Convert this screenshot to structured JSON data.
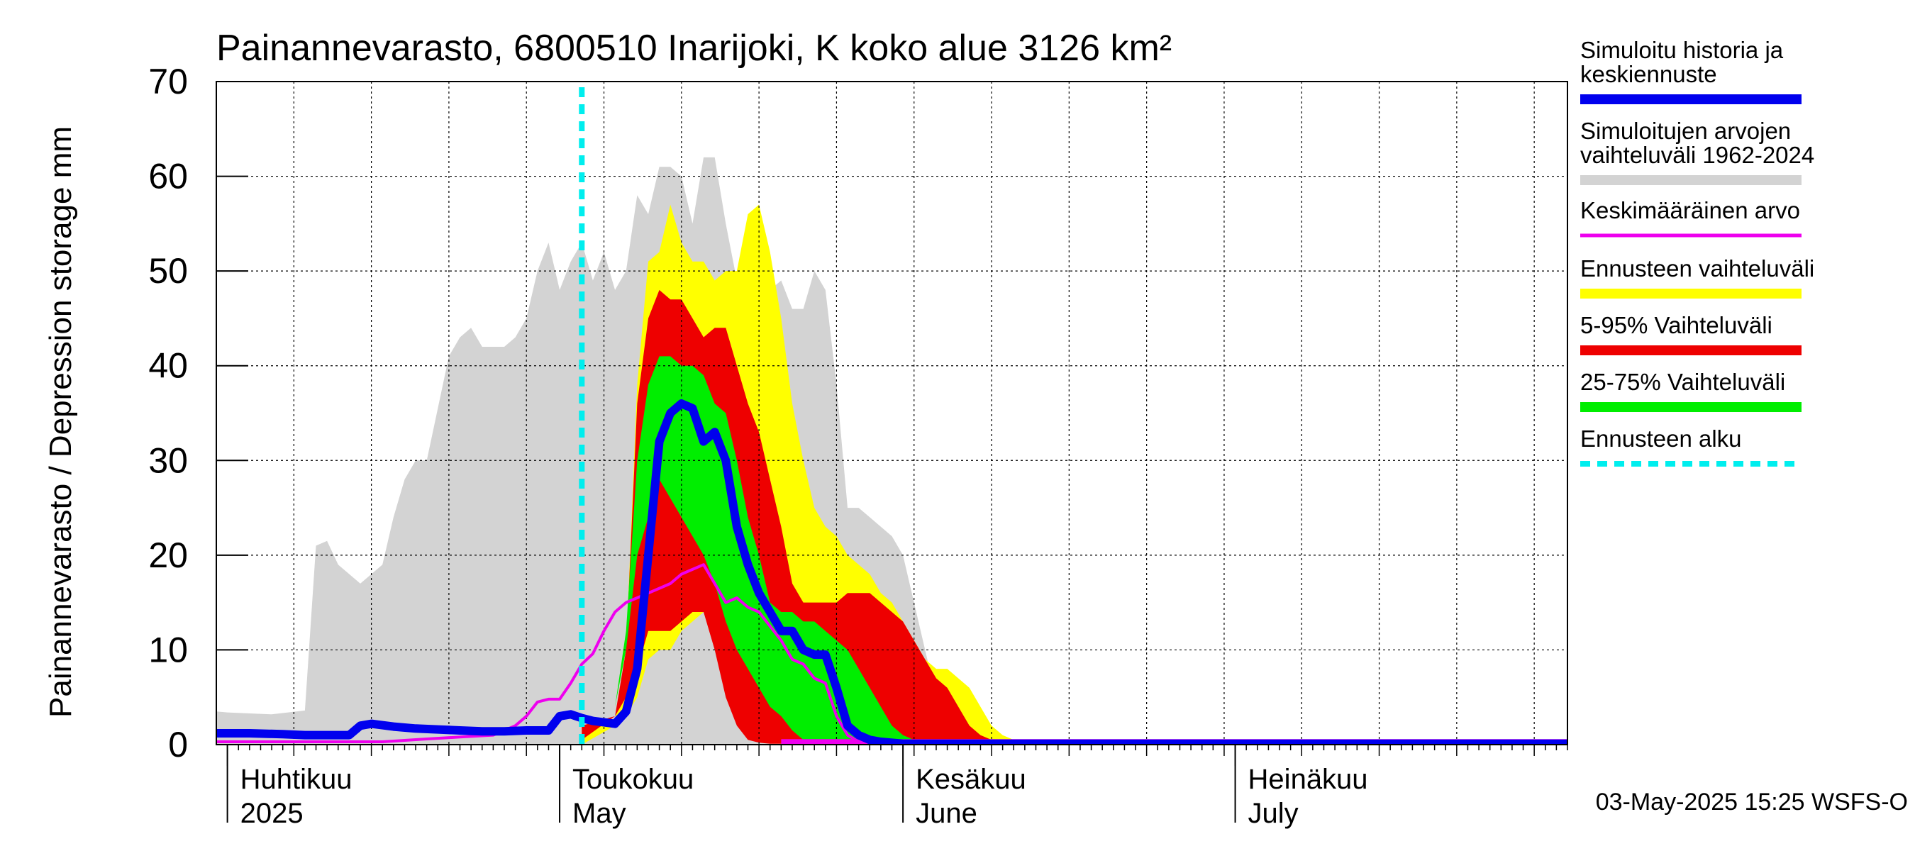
{
  "chart_data": {
    "type": "area",
    "title": "Painannevarasto, 6800510 Inarijoki, K koko alue 3126 km²",
    "ylabel": "Painannevarasto / Depression storage    mm",
    "ylim": [
      0,
      70
    ],
    "yticks": [
      0,
      10,
      20,
      30,
      40,
      50,
      60,
      70
    ],
    "xlim": [
      "2025-03-31",
      "2025-07-31"
    ],
    "grid": true,
    "legend_position": "right",
    "month_labels": [
      {
        "date": "2025-04-01",
        "fi": "Huhtikuu",
        "en": "2025"
      },
      {
        "date": "2025-05-01",
        "fi": "Toukokuu",
        "en": "May"
      },
      {
        "date": "2025-06-01",
        "fi": "Kesäkuu",
        "en": "June"
      },
      {
        "date": "2025-07-01",
        "fi": "Heinäkuu",
        "en": "July"
      }
    ],
    "forecast_start": "2025-05-03",
    "footer": "03-May-2025 15:25 WSFS-O",
    "legend": [
      {
        "key": "history",
        "label": "Simuloitu historia ja keskiennuste",
        "color": "#0000ee",
        "style": "solid"
      },
      {
        "key": "sim_range",
        "label": "Simuloitujen arvojen vaihteluväli 1962-2024",
        "color": "#d3d3d3",
        "style": "solid"
      },
      {
        "key": "mean",
        "label": "Keskimääräinen arvo",
        "color": "#ee00ee",
        "style": "solid"
      },
      {
        "key": "fc_range",
        "label": "Ennusteen vaihteluväli",
        "color": "#ffff00",
        "style": "solid"
      },
      {
        "key": "p5_95",
        "label": "5-95% Vaihteluväli",
        "color": "#ee0000",
        "style": "solid"
      },
      {
        "key": "p25_75",
        "label": "25-75% Vaihteluväli",
        "color": "#00ee00",
        "style": "solid"
      },
      {
        "key": "fc_start",
        "label": "Ennusteen alku",
        "color": "#00eeee",
        "style": "dashed"
      }
    ],
    "sim_range": {
      "x": [
        "2025-03-31",
        "2025-04-01",
        "2025-04-05",
        "2025-04-08",
        "2025-04-09",
        "2025-04-10",
        "2025-04-11",
        "2025-04-13",
        "2025-04-15",
        "2025-04-16",
        "2025-04-17",
        "2025-04-18",
        "2025-04-19",
        "2025-04-21",
        "2025-04-22",
        "2025-04-23",
        "2025-04-24",
        "2025-04-26",
        "2025-04-27",
        "2025-04-28",
        "2025-04-29",
        "2025-04-30",
        "2025-05-01",
        "2025-05-02",
        "2025-05-03",
        "2025-05-04",
        "2025-05-05",
        "2025-05-06",
        "2025-05-07",
        "2025-05-08",
        "2025-05-09",
        "2025-05-10",
        "2025-05-11",
        "2025-05-12",
        "2025-05-13",
        "2025-05-14",
        "2025-05-15",
        "2025-05-16",
        "2025-05-17",
        "2025-05-18",
        "2025-05-19",
        "2025-05-20",
        "2025-05-21",
        "2025-05-22",
        "2025-05-23",
        "2025-05-24",
        "2025-05-25",
        "2025-05-26",
        "2025-05-27",
        "2025-05-28",
        "2025-05-29",
        "2025-05-30",
        "2025-05-31",
        "2025-06-01",
        "2025-06-02",
        "2025-06-03",
        "2025-06-04",
        "2025-06-05",
        "2025-06-06",
        "2025-06-07",
        "2025-06-08",
        "2025-06-09",
        "2025-06-10",
        "2025-06-11",
        "2025-06-12",
        "2025-06-13",
        "2025-06-14",
        "2025-06-15",
        "2025-06-16",
        "2025-06-17",
        "2025-06-18",
        "2025-06-19",
        "2025-06-20",
        "2025-06-21",
        "2025-06-22",
        "2025-06-23",
        "2025-06-24",
        "2025-06-25",
        "2025-06-26",
        "2025-06-27",
        "2025-06-28",
        "2025-06-30",
        "2025-07-31"
      ],
      "low": [
        0,
        0,
        0,
        0,
        0,
        0,
        0,
        0,
        0,
        0,
        0,
        0,
        0,
        0,
        0,
        0,
        0,
        0,
        0,
        0,
        0,
        0,
        0,
        0,
        0,
        0,
        0,
        0,
        0,
        0,
        0,
        0,
        0,
        0,
        0,
        0,
        0,
        0,
        0,
        0,
        0,
        0,
        0,
        0,
        0,
        0,
        0,
        0,
        0,
        0,
        0,
        0,
        0,
        0,
        0,
        0,
        0,
        0,
        0,
        0,
        0,
        0,
        0,
        0,
        0,
        0,
        0,
        0,
        0,
        0,
        0,
        0,
        0,
        0,
        0,
        0,
        0,
        0,
        0,
        0,
        0,
        0,
        0
      ],
      "high": [
        3.5,
        3.4,
        3.2,
        3.6,
        21,
        21.5,
        19,
        17,
        19,
        24,
        28,
        30,
        30,
        41,
        43,
        44,
        42,
        42,
        43,
        45,
        50,
        53,
        48,
        51,
        53,
        49,
        52,
        48,
        50,
        58,
        56,
        61,
        61,
        60,
        55,
        62,
        62,
        55,
        49,
        49,
        48,
        48,
        49,
        46,
        46,
        50,
        48,
        38,
        25,
        25,
        24,
        23,
        22,
        20,
        15,
        10,
        5,
        2,
        1,
        0.5,
        0.3,
        0.2,
        0.1,
        0.1,
        0.1,
        0.1,
        0.1,
        0.1,
        0.1,
        0.1,
        0.1,
        0.1,
        0.1,
        0.1,
        0.1,
        0.1,
        0.1,
        0.1,
        0.1,
        0.1,
        0.1,
        0.1,
        0.1
      ]
    },
    "fc_range": {
      "x": [
        "2025-05-03",
        "2025-05-06",
        "2025-05-07",
        "2025-05-08",
        "2025-05-09",
        "2025-05-10",
        "2025-05-11",
        "2025-05-12",
        "2025-05-13",
        "2025-05-14",
        "2025-05-15",
        "2025-05-16",
        "2025-05-17",
        "2025-05-18",
        "2025-05-19",
        "2025-05-20",
        "2025-05-21",
        "2025-05-22",
        "2025-05-23",
        "2025-05-24",
        "2025-05-25",
        "2025-05-26",
        "2025-05-27",
        "2025-05-28",
        "2025-05-29",
        "2025-05-30",
        "2025-05-31",
        "2025-06-01",
        "2025-06-02",
        "2025-06-03",
        "2025-06-04",
        "2025-06-05",
        "2025-06-06",
        "2025-06-07",
        "2025-06-08",
        "2025-06-09",
        "2025-06-10",
        "2025-06-11",
        "2025-06-12",
        "2025-06-13",
        "2025-06-14",
        "2025-06-15",
        "2025-06-16",
        "2025-06-17",
        "2025-06-18",
        "2025-06-19",
        "2025-06-20",
        "2025-06-21",
        "2025-06-22",
        "2025-06-24",
        "2025-07-31"
      ],
      "low": [
        0,
        2,
        3,
        5,
        9,
        10,
        10,
        12,
        13,
        14,
        12,
        8,
        3,
        1,
        0.5,
        0.3,
        0.2,
        0.1,
        0.1,
        0.1,
        0.1,
        0.1,
        0.1,
        0.1,
        0.1,
        0.1,
        0.1,
        0.1,
        0.1,
        0.1,
        0.1,
        0.1,
        0.1,
        0.1,
        0.1,
        0.1,
        0.1,
        0.1,
        0.1,
        0.1,
        0.1,
        0.1,
        0.1,
        0.1,
        0.1,
        0.1,
        0.1,
        0.1,
        0.1,
        0.1,
        0.1
      ],
      "high": [
        2,
        2.5,
        10,
        38,
        51,
        52,
        57,
        53,
        51,
        51,
        49,
        50,
        50,
        56,
        57,
        52,
        45,
        36,
        30,
        25,
        23,
        22,
        20,
        19,
        18,
        16,
        15,
        13,
        11,
        9,
        8,
        8,
        7,
        6,
        4,
        2,
        1,
        0.5,
        0.3,
        0.2,
        0.1,
        0.1,
        0.1,
        0.1,
        0.1,
        0.1,
        0.1,
        0.1,
        0.1,
        0.1,
        0.1
      ]
    },
    "p5_95": {
      "x": [
        "2025-05-03",
        "2025-05-06",
        "2025-05-07",
        "2025-05-08",
        "2025-05-09",
        "2025-05-10",
        "2025-05-11",
        "2025-05-12",
        "2025-05-13",
        "2025-05-14",
        "2025-05-15",
        "2025-05-16",
        "2025-05-17",
        "2025-05-18",
        "2025-05-19",
        "2025-05-20",
        "2025-05-21",
        "2025-05-22",
        "2025-05-23",
        "2025-05-24",
        "2025-05-25",
        "2025-05-26",
        "2025-05-27",
        "2025-05-28",
        "2025-05-29",
        "2025-05-30",
        "2025-05-31",
        "2025-06-01",
        "2025-06-02",
        "2025-06-03",
        "2025-06-04",
        "2025-06-05",
        "2025-06-06",
        "2025-06-07",
        "2025-06-08",
        "2025-06-09",
        "2025-06-10",
        "2025-06-11",
        "2025-06-12",
        "2025-06-13",
        "2025-06-15",
        "2025-07-31"
      ],
      "low": [
        0.5,
        3,
        5,
        8,
        12,
        12,
        12,
        13,
        14,
        14,
        10,
        5,
        2,
        0.5,
        0.2,
        0.1,
        0.1,
        0.1,
        0.1,
        0.1,
        0.1,
        0.1,
        0.1,
        0.1,
        0.1,
        0.1,
        0.1,
        0.1,
        0.1,
        0.1,
        0.1,
        0.1,
        0.1,
        0.1,
        0.1,
        0.1,
        0.1,
        0.1,
        0.1,
        0.1,
        0.1,
        0.1
      ],
      "high": [
        2,
        3,
        10,
        36,
        45,
        48,
        47,
        47,
        45,
        43,
        44,
        44,
        40,
        36,
        33,
        28,
        23,
        17,
        15,
        15,
        15,
        15,
        16,
        16,
        16,
        15,
        14,
        13,
        11,
        9,
        7,
        6,
        4,
        2,
        1,
        0.5,
        0.2,
        0.1,
        0.1,
        0.1,
        0.1,
        0.1
      ]
    },
    "p25_75": {
      "x": [
        "2025-05-05",
        "2025-05-06",
        "2025-05-07",
        "2025-05-08",
        "2025-05-09",
        "2025-05-10",
        "2025-05-11",
        "2025-05-12",
        "2025-05-13",
        "2025-05-14",
        "2025-05-15",
        "2025-05-16",
        "2025-05-17",
        "2025-05-18",
        "2025-05-19",
        "2025-05-20",
        "2025-05-21",
        "2025-05-22",
        "2025-05-23",
        "2025-05-24",
        "2025-05-25",
        "2025-05-26",
        "2025-05-27",
        "2025-05-28",
        "2025-05-29",
        "2025-05-30",
        "2025-05-31",
        "2025-06-01",
        "2025-06-02",
        "2025-06-03",
        "2025-06-04",
        "2025-06-05",
        "2025-06-06",
        "2025-06-08",
        "2025-07-31"
      ],
      "low": [
        2.5,
        4,
        10,
        20,
        24,
        28,
        26,
        24,
        22,
        20,
        17,
        13,
        10,
        8,
        6,
        4,
        3,
        1.5,
        0.5,
        0.3,
        0.2,
        0.1,
        0.1,
        0.1,
        0.1,
        0.1,
        0.1,
        0.1,
        0.1,
        0.1,
        0.1,
        0.1,
        0.1,
        0.1,
        0.1
      ],
      "high": [
        2.5,
        4,
        12,
        30,
        38,
        41,
        41,
        40,
        40,
        39,
        36,
        35,
        30,
        24,
        20,
        15,
        14,
        14,
        13,
        13,
        12,
        11,
        10,
        8,
        6,
        4,
        2,
        1,
        0.5,
        0.3,
        0.2,
        0.1,
        0.1,
        0.1,
        0.1
      ]
    },
    "mean": {
      "x": [
        "2025-03-31",
        "2025-04-05",
        "2025-04-10",
        "2025-04-15",
        "2025-04-19",
        "2025-04-22",
        "2025-04-25",
        "2025-04-27",
        "2025-04-28",
        "2025-04-29",
        "2025-04-30",
        "2025-05-01",
        "2025-05-02",
        "2025-05-03",
        "2025-05-04",
        "2025-05-05",
        "2025-05-06",
        "2025-05-07",
        "2025-05-08",
        "2025-05-09",
        "2025-05-10",
        "2025-05-11",
        "2025-05-12",
        "2025-05-13",
        "2025-05-14",
        "2025-05-15",
        "2025-05-16",
        "2025-05-17",
        "2025-05-18",
        "2025-05-19",
        "2025-05-20",
        "2025-05-21",
        "2025-05-22",
        "2025-05-23",
        "2025-05-24",
        "2025-05-25",
        "2025-05-26",
        "2025-05-27",
        "2025-05-28",
        "2025-05-29",
        "2025-05-30",
        "2025-05-31",
        "2025-06-01",
        "2025-06-02",
        "2025-06-03",
        "2025-06-04",
        "2025-06-05",
        "2025-06-06",
        "2025-06-08",
        "2025-07-31"
      ],
      "y": [
        0.3,
        0.3,
        0.3,
        0.3,
        0.6,
        0.8,
        1,
        2,
        3,
        4.5,
        4.8,
        4.8,
        6.5,
        8.5,
        9.6,
        12,
        14,
        15,
        15.5,
        16,
        16.5,
        17,
        18,
        18.5,
        19,
        17,
        15,
        15.5,
        14.5,
        14,
        12.5,
        11,
        9,
        8.5,
        7,
        6.5,
        3,
        1,
        0.3,
        0.1,
        0.1,
        0.1,
        0.1,
        0.1,
        0.1,
        0.1,
        0.1,
        0.1,
        0.1,
        0.1
      ]
    },
    "history": {
      "x": [
        "2025-03-31",
        "2025-04-03",
        "2025-04-06",
        "2025-04-08",
        "2025-04-10",
        "2025-04-12",
        "2025-04-13",
        "2025-04-14",
        "2025-04-16",
        "2025-04-18",
        "2025-04-20",
        "2025-04-22",
        "2025-04-24",
        "2025-04-26",
        "2025-04-28",
        "2025-04-30",
        "2025-05-01",
        "2025-05-02",
        "2025-05-03",
        "2025-05-04",
        "2025-05-06",
        "2025-05-07",
        "2025-05-08",
        "2025-05-09",
        "2025-05-10",
        "2025-05-11",
        "2025-05-12",
        "2025-05-13",
        "2025-05-14",
        "2025-05-15",
        "2025-05-16",
        "2025-05-17",
        "2025-05-18",
        "2025-05-19",
        "2025-05-20",
        "2025-05-21",
        "2025-05-22",
        "2025-05-23",
        "2025-05-24",
        "2025-05-25",
        "2025-05-26",
        "2025-05-27",
        "2025-05-28",
        "2025-05-29",
        "2025-05-30",
        "2025-05-31",
        "2025-06-01",
        "2025-06-02",
        "2025-06-04",
        "2025-06-06",
        "2025-06-08",
        "2025-07-31"
      ],
      "y": [
        1.2,
        1.2,
        1.1,
        1,
        1,
        1,
        2,
        2.2,
        1.9,
        1.7,
        1.6,
        1.5,
        1.4,
        1.4,
        1.5,
        1.5,
        3,
        3.2,
        2.8,
        2.5,
        2.2,
        3.5,
        8,
        20,
        32,
        35,
        36,
        35.5,
        32,
        33,
        30,
        23,
        19,
        16,
        14,
        12,
        12,
        10,
        9.5,
        9.5,
        6,
        2,
        1,
        0.5,
        0.3,
        0.2,
        0.1,
        0.1,
        0.1,
        0.1,
        0.1,
        0.1
      ]
    },
    "baseline": {
      "x": [
        "2025-05-21",
        "2025-07-31"
      ],
      "y": [
        0.2,
        0.2
      ]
    }
  }
}
